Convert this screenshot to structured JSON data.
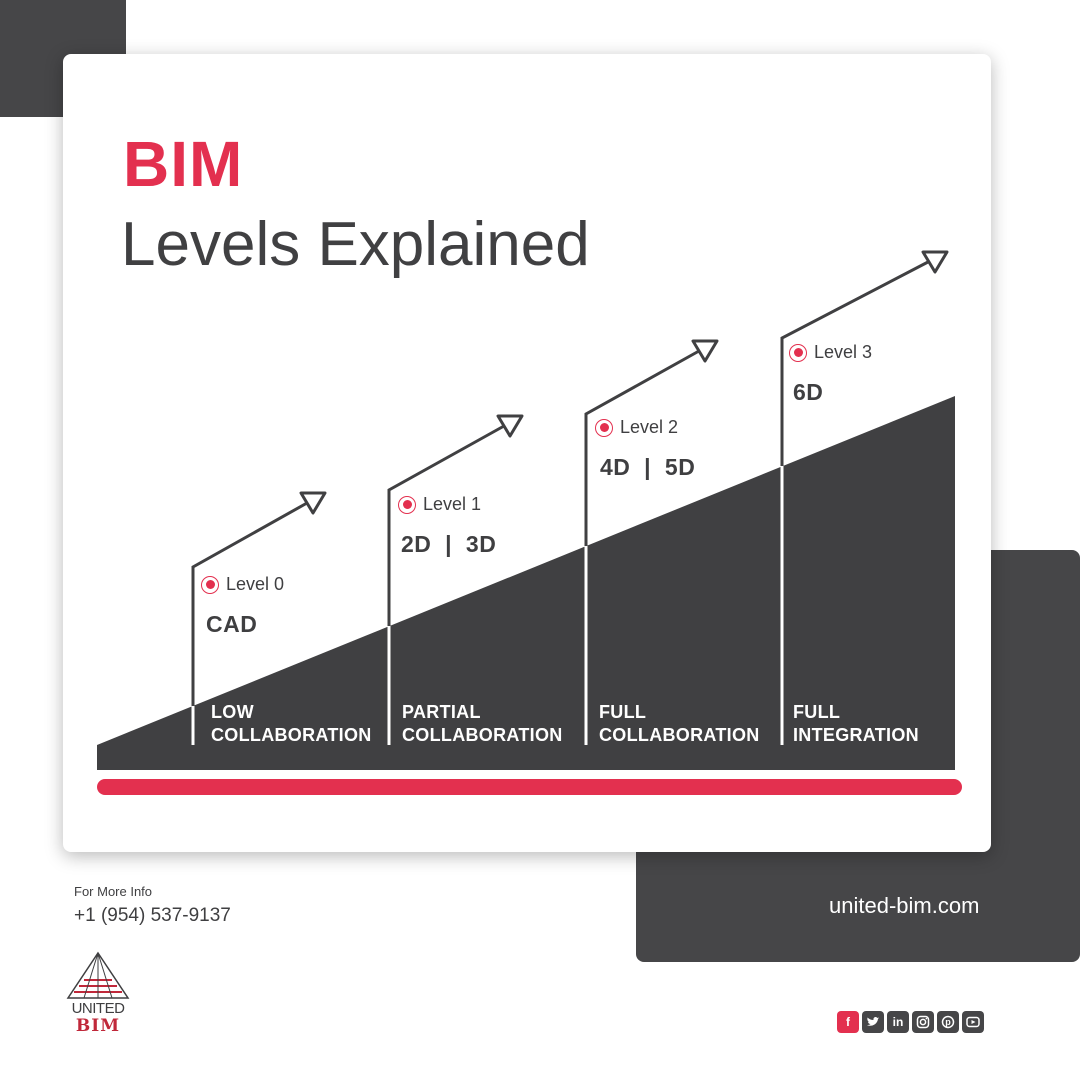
{
  "colors": {
    "accent": "#e3304f",
    "dark": "#464648",
    "text": "#3f3f41",
    "white": "#ffffff"
  },
  "title": {
    "line1": "BIM",
    "line2": "Levels Explained"
  },
  "levels": [
    {
      "label": "Level 0",
      "dimension": "CAD",
      "collaboration": [
        "LOW",
        "COLLABORATION"
      ]
    },
    {
      "label": "Level 1",
      "dimension": "2D  |  3D",
      "collaboration": [
        "PARTIAL",
        "COLLABORATION"
      ]
    },
    {
      "label": "Level 2",
      "dimension": "4D  |  5D",
      "collaboration": [
        "FULL",
        "COLLABORATION"
      ]
    },
    {
      "label": "Level 3",
      "dimension": "6D",
      "collaboration": [
        "FULL",
        "INTEGRATION"
      ]
    }
  ],
  "contact": {
    "label": "For More Info",
    "phone": "+1 (954) 537-9137"
  },
  "website": "united-bim.com",
  "logo": {
    "top": "UNITED",
    "bottom": "BIM"
  },
  "social": [
    "facebook-icon",
    "twitter-icon",
    "linkedin-icon",
    "instagram-icon",
    "pinterest-icon",
    "youtube-icon"
  ]
}
